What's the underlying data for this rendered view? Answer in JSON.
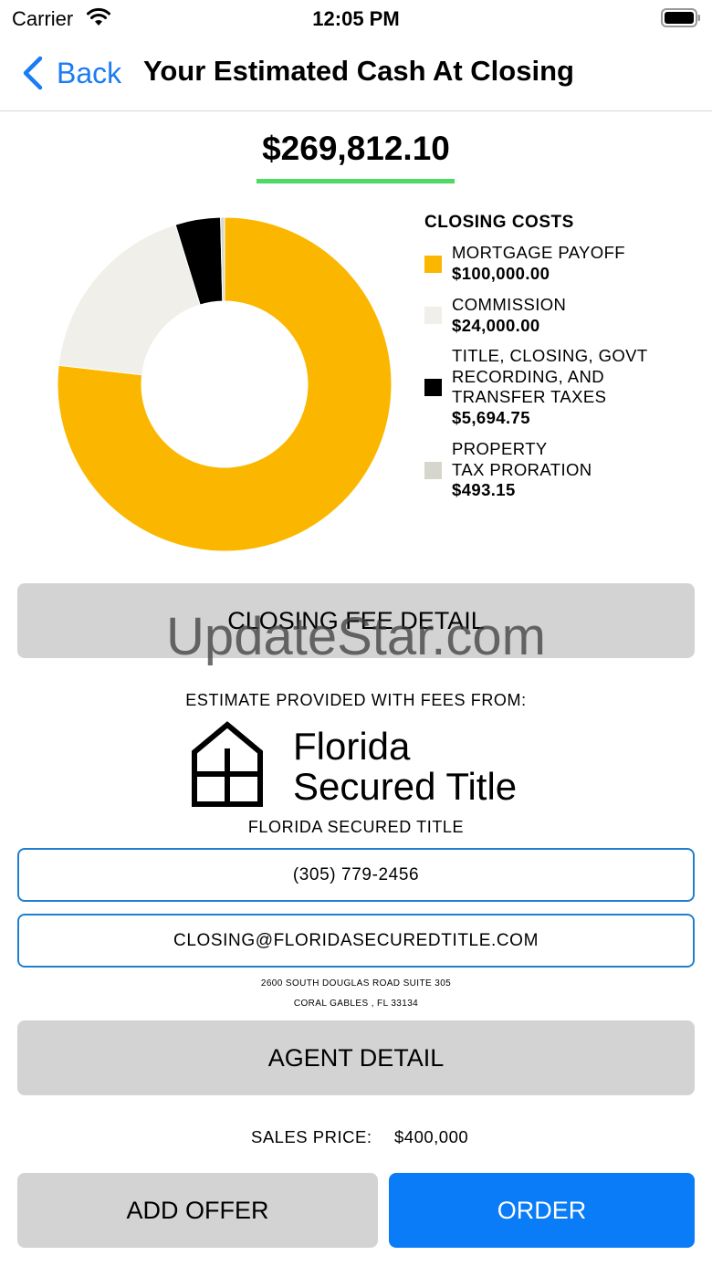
{
  "status_bar": {
    "carrier": "Carrier",
    "time": "12:05 PM",
    "wifi_icon": "wifi-icon",
    "battery_icon": "battery-icon"
  },
  "nav": {
    "back_label": "Back",
    "back_icon": "chevron-left-icon",
    "title": "Your Estimated Cash At Closing"
  },
  "total": {
    "amount": "$269,812.10",
    "underline_color": "#4cd964"
  },
  "chart_data": {
    "type": "pie",
    "title": "CLOSING COSTS",
    "slices": [
      {
        "label": "MORTGAGE PAYOFF",
        "value": 100000.0,
        "display": "$100,000.00",
        "color": "#fbb700"
      },
      {
        "label": "COMMISSION",
        "value": 24000.0,
        "display": "$24,000.00",
        "color": "#f0efe9"
      },
      {
        "label": "TITLE, CLOSING, GOVT\nRECORDING, AND\nTRANSFER TAXES",
        "value": 5694.75,
        "display": "$5,694.75",
        "color": "#000000"
      },
      {
        "label": "PROPERTY\nTAX PRORATION",
        "value": 493.15,
        "display": "$493.15",
        "color": "#d7d6cc"
      }
    ]
  },
  "buttons": {
    "closing_fee_detail": "CLOSING FEE DETAIL",
    "agent_detail": "AGENT DETAIL",
    "add_offer": "ADD OFFER",
    "order": "ORDER"
  },
  "watermark": "UpdateStar.com",
  "provider": {
    "intro": "ESTIMATE PROVIDED WITH FEES FROM:",
    "logo_line1": "Florida",
    "logo_line2": "Secured Title",
    "logo_icon": "house-icon",
    "name": "FLORIDA SECURED TITLE",
    "phone": "(305) 779-2456",
    "email": "CLOSING@FLORIDASECUREDTITLE.COM",
    "address_line1": "2600 SOUTH DOUGLAS ROAD SUITE 305",
    "address_line2": "CORAL GABLES , FL 33134"
  },
  "sales": {
    "label": "SALES PRICE:",
    "value": "$400,000"
  },
  "colors": {
    "accent": "#0a7cf7",
    "back": "#1a7cf5",
    "button_gray": "#d3d3d3",
    "field_border": "#1f7fd1"
  }
}
